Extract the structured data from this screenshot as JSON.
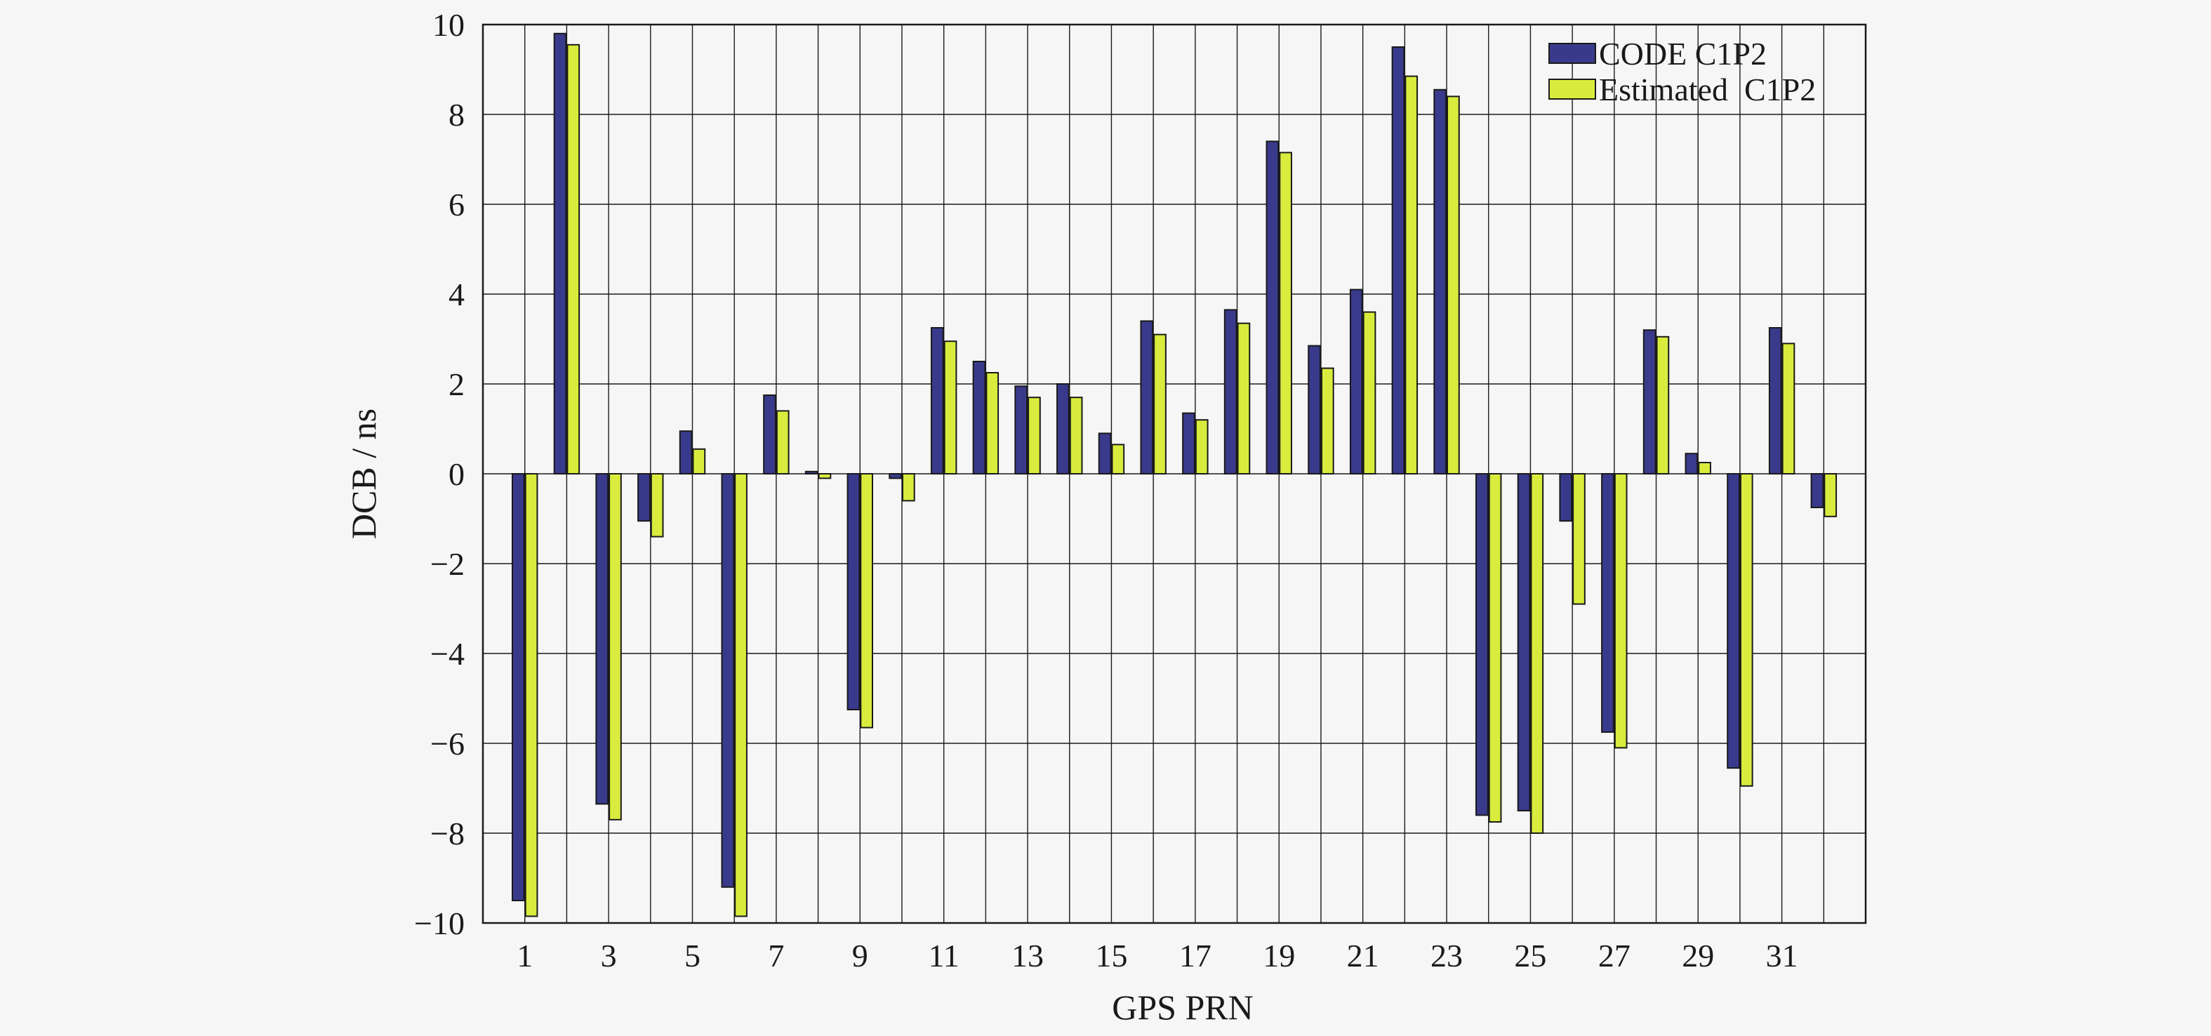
{
  "chart_data": {
    "type": "bar",
    "xlabel": "GPS PRN",
    "ylabel": "DCB / ns",
    "ylim": [
      -10,
      10
    ],
    "yticks": [
      -10,
      -8,
      -6,
      -4,
      -2,
      0,
      2,
      4,
      6,
      8,
      10
    ],
    "ytick_labels": [
      "−10",
      "−8",
      "−6",
      "−4",
      "−2",
      "0",
      "2",
      "4",
      "6",
      "8",
      "10"
    ],
    "xtick_labels": [
      "1",
      "3",
      "5",
      "7",
      "9",
      "11",
      "13",
      "15",
      "17",
      "19",
      "21",
      "23",
      "25",
      "27",
      "29",
      "31"
    ],
    "categories": [
      1,
      2,
      3,
      4,
      5,
      6,
      7,
      8,
      9,
      10,
      11,
      12,
      13,
      14,
      15,
      16,
      17,
      18,
      19,
      20,
      21,
      22,
      23,
      24,
      25,
      26,
      27,
      28,
      29,
      30,
      31,
      32
    ],
    "grid": true,
    "legend_position": "top-right",
    "series": [
      {
        "name": "CODE C1P2",
        "color": "#3a3a8c",
        "values": [
          -9.5,
          9.8,
          -7.35,
          -1.05,
          0.95,
          -9.2,
          1.75,
          0.05,
          -5.25,
          -0.1,
          3.25,
          2.5,
          1.95,
          2.0,
          0.9,
          3.4,
          1.35,
          3.65,
          7.4,
          2.85,
          4.1,
          9.5,
          8.55,
          -7.6,
          -7.5,
          -1.05,
          -5.75,
          3.2,
          0.45,
          -6.55,
          3.25,
          -0.75
        ]
      },
      {
        "name": "Estimated  C1P2",
        "color": "#d9ec3e",
        "values": [
          -9.85,
          9.55,
          -7.7,
          -1.4,
          0.55,
          -9.85,
          1.4,
          -0.1,
          -5.65,
          -0.6,
          2.95,
          2.25,
          1.7,
          1.7,
          0.65,
          3.1,
          1.2,
          3.35,
          7.15,
          2.35,
          3.6,
          8.85,
          8.4,
          -7.75,
          -8.0,
          -2.9,
          -6.1,
          3.05,
          0.25,
          -6.95,
          2.9,
          -0.95
        ]
      }
    ]
  }
}
